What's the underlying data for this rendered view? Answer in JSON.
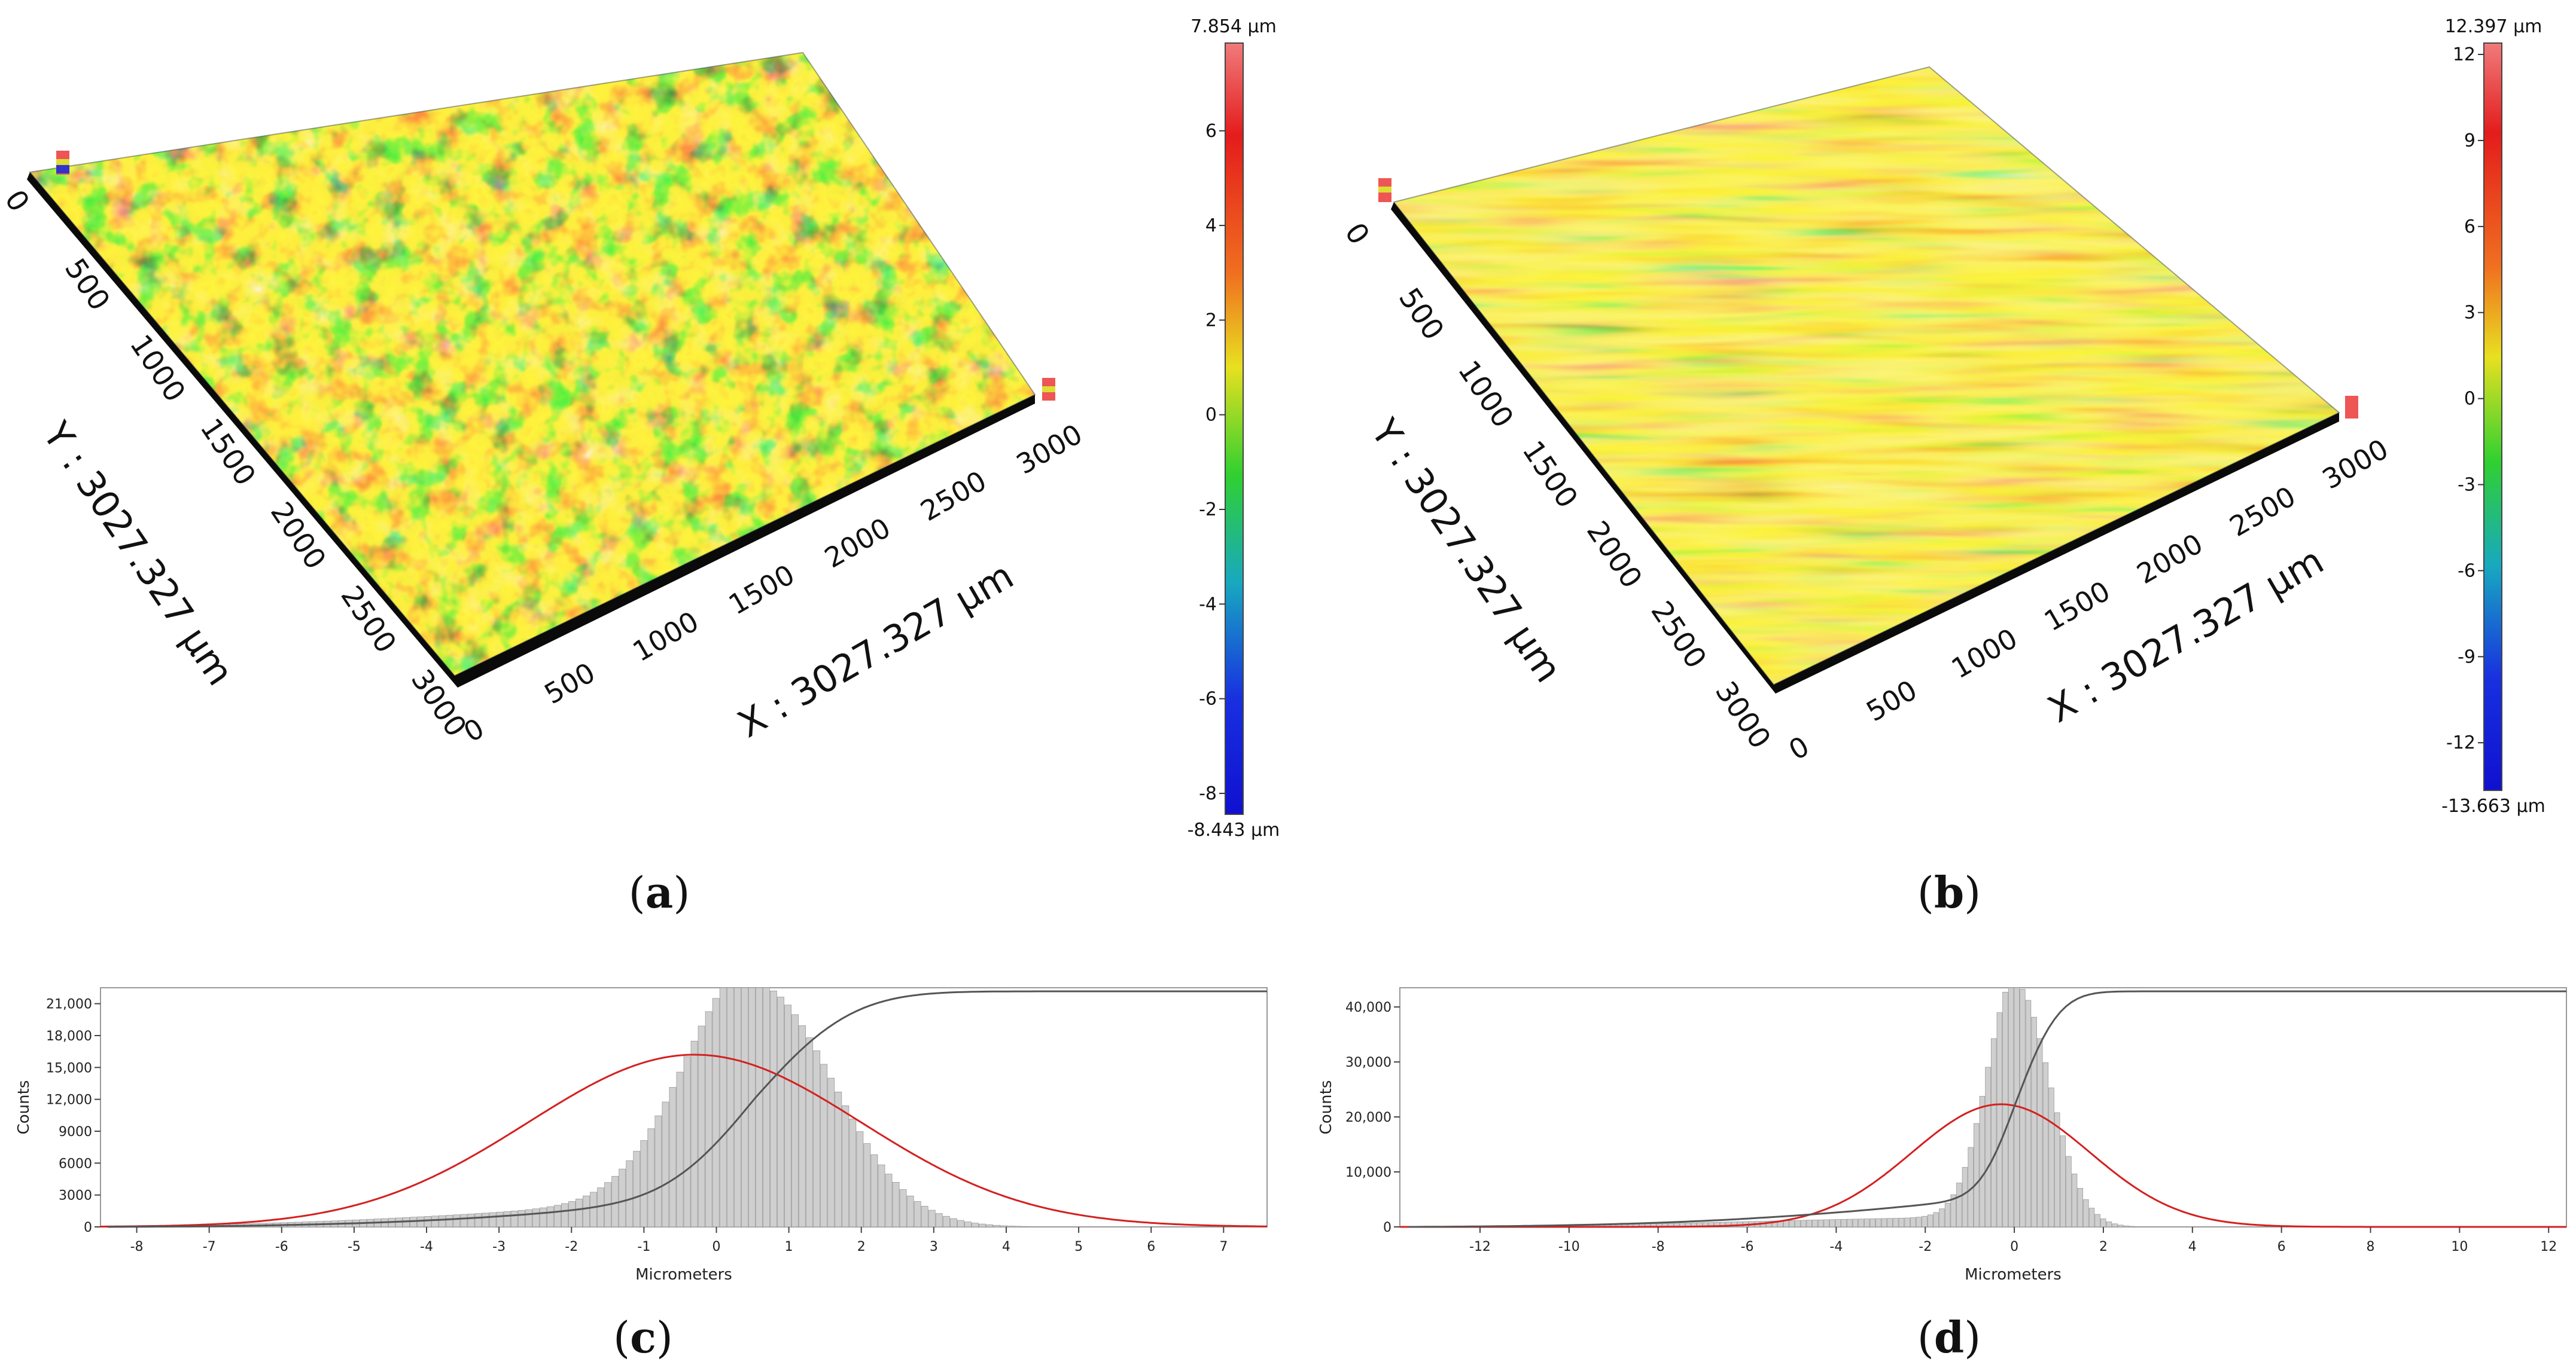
{
  "panels": [
    {
      "id": "a",
      "caption_open": "(",
      "caption_letter": "a",
      "caption_close": ")",
      "chart_data": {
        "type": "surface3d",
        "x_axis_label": "X : 3027.327 µm",
        "y_axis_label": "Y : 3027.327 µm",
        "x_ticks": [
          "0",
          "500",
          "1000",
          "1500",
          "2000",
          "2500",
          "3000"
        ],
        "y_ticks": [
          "0",
          "500",
          "1000",
          "1500",
          "2000",
          "2500",
          "3000"
        ],
        "colorbar_max_label": "7.854 µm",
        "colorbar_min_label": "-8.443 µm",
        "colorbar_range": [
          -8.443,
          7.854
        ],
        "colorbar_ticks": [
          "6",
          "4",
          "2",
          "0",
          "-2",
          "-4",
          "-6",
          "-8"
        ],
        "colorbar_tick_values": [
          6,
          4,
          2,
          0,
          -2,
          -4,
          -6,
          -8
        ]
      }
    },
    {
      "id": "b",
      "caption_open": "(",
      "caption_letter": "b",
      "caption_close": ")",
      "chart_data": {
        "type": "surface3d",
        "x_axis_label": "X : 3027.327 µm",
        "y_axis_label": "Y : 3027.327 µm",
        "x_ticks": [
          "0",
          "500",
          "1000",
          "1500",
          "2000",
          "2500",
          "3000"
        ],
        "y_ticks": [
          "0",
          "500",
          "1000",
          "1500",
          "2000",
          "2500",
          "3000"
        ],
        "colorbar_max_label": "12.397 µm",
        "colorbar_min_label": "-13.663 µm",
        "colorbar_range": [
          -13.663,
          12.397
        ],
        "colorbar_ticks": [
          "12",
          "9",
          "6",
          "3",
          "0",
          "-3",
          "-6",
          "-9",
          "-12"
        ],
        "colorbar_tick_values": [
          12,
          9,
          6,
          3,
          0,
          -3,
          -6,
          -9,
          -12
        ]
      }
    },
    {
      "id": "c",
      "caption_open": "(",
      "caption_letter": "c",
      "caption_close": ")",
      "chart_data": {
        "type": "histogram",
        "xlabel": "Micrometers",
        "ylabel": "Counts",
        "xlim": [
          -8.5,
          7.6
        ],
        "ylim": [
          0,
          22500
        ],
        "x_ticks": [
          -8,
          -7,
          -6,
          -5,
          -4,
          -3,
          -2,
          -1,
          0,
          1,
          2,
          3,
          4,
          5,
          6,
          7
        ],
        "y_ticks": [
          0,
          3000,
          6000,
          9000,
          12000,
          15000,
          18000,
          21000
        ],
        "y_tick_labels": [
          "0",
          "3000",
          "6000",
          "9000",
          "12,000",
          "15,000",
          "18,000",
          "21,000"
        ],
        "bins": {
          "start": -8.4,
          "end": 7.5,
          "count": 160
        },
        "peak": {
          "x": 0.55,
          "count": 22800
        },
        "fitted_normal": {
          "mean": -0.3,
          "std": 2.3,
          "peak": 16200
        },
        "cumulative": {
          "color": "#555555"
        },
        "fit_color": "#d42020"
      }
    },
    {
      "id": "d",
      "caption_open": "(",
      "caption_letter": "d",
      "caption_close": ")",
      "chart_data": {
        "type": "histogram",
        "xlabel": "Micrometers",
        "ylabel": "Counts",
        "xlim": [
          -13.8,
          12.4
        ],
        "ylim": [
          0,
          43500
        ],
        "x_ticks": [
          -12,
          -10,
          -8,
          -6,
          -4,
          -2,
          0,
          2,
          4,
          6,
          8,
          10,
          12
        ],
        "y_ticks": [
          0,
          10000,
          20000,
          30000,
          40000
        ],
        "y_tick_labels": [
          "0",
          "10,000",
          "20,000",
          "30,000",
          "40,000"
        ],
        "bins": {
          "start": -13.6,
          "end": 12.3,
          "count": 200
        },
        "peak": {
          "x": 0.05,
          "count": 44000
        },
        "fitted_normal": {
          "mean": -0.3,
          "std": 2.0,
          "peak": 22300
        },
        "cumulative": {
          "color": "#555555"
        },
        "fit_color": "#d42020"
      }
    }
  ]
}
